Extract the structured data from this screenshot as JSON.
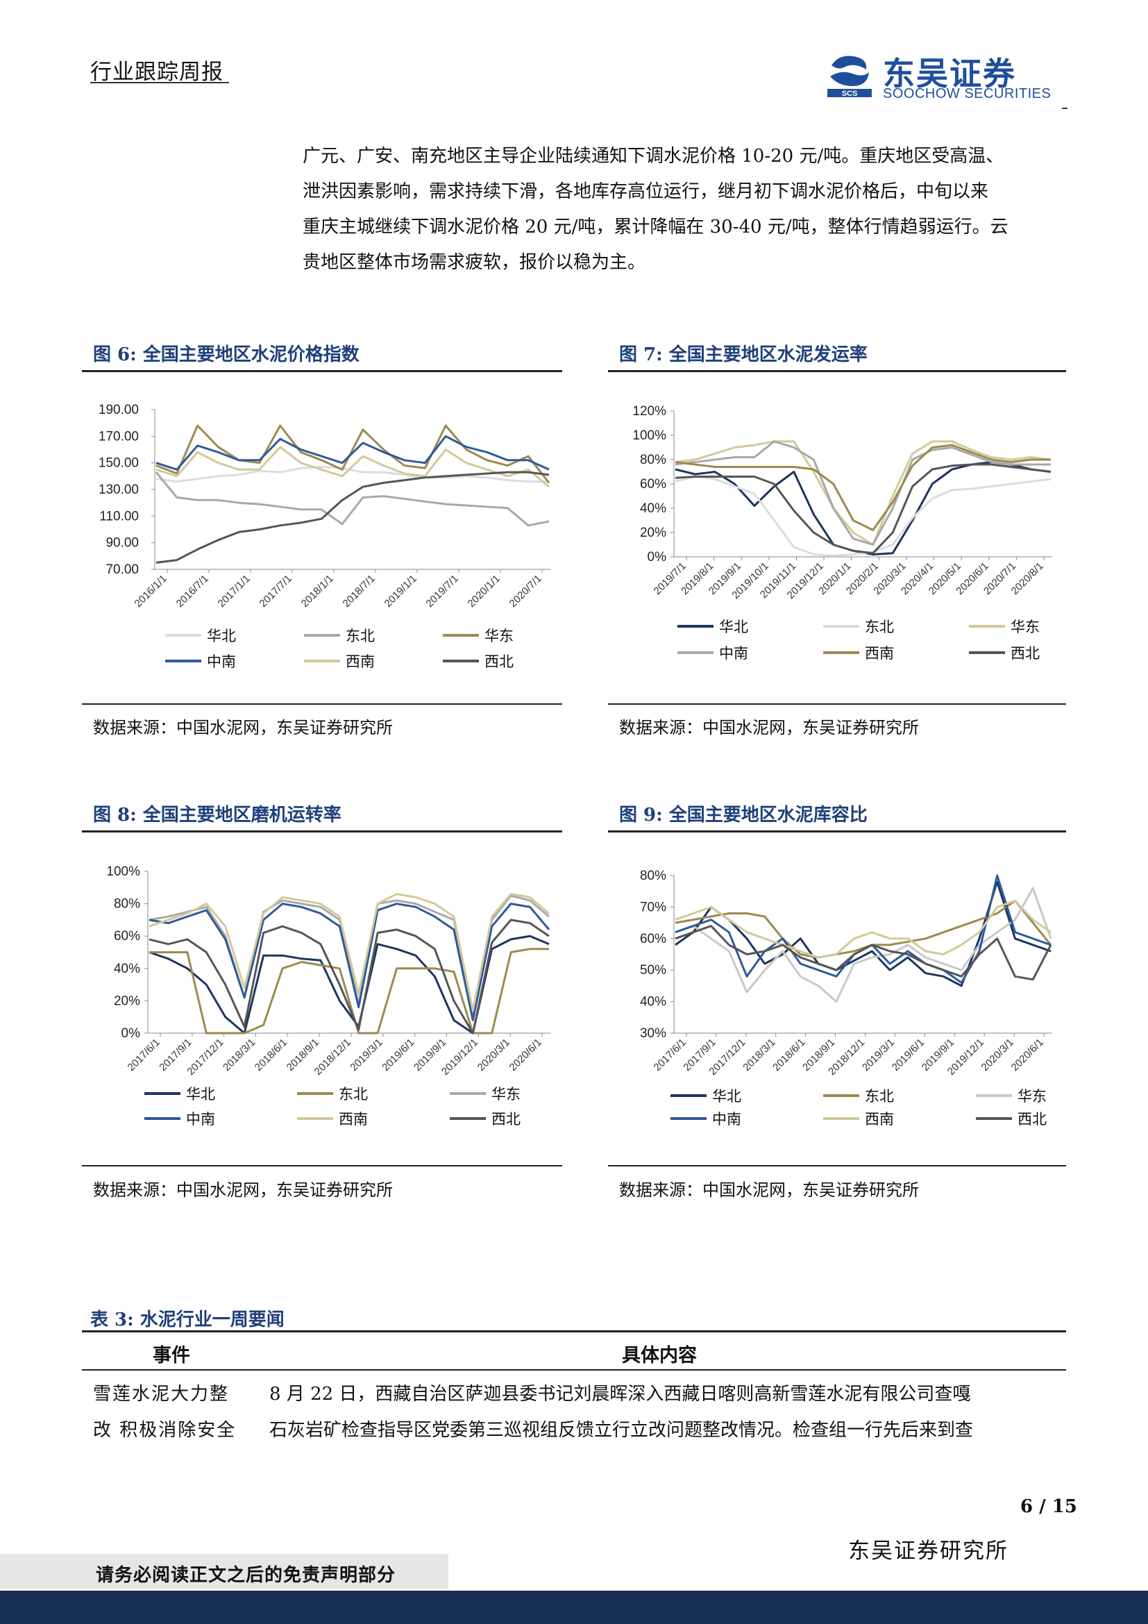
{
  "header": {
    "title": "行业跟踪周报"
  },
  "logo": {
    "cn": "东吴证券",
    "en": "SOOCHOW SECURITIES",
    "mark": "SCS"
  },
  "body": {
    "lines": [
      "广元、广安、南充地区主导企业陆续通知下调水泥价格 10-20 元/吨。重庆地区受高温、",
      "泄洪因素影响，需求持续下滑，各地库存高位运行，继月初下调水泥价格后，中旬以来",
      "重庆主城继续下调水泥价格 20 元/吨，累计降幅在 30-40 元/吨，整体行情趋弱运行。云",
      "贵地区整体市场需求疲软，报价以稳为主。"
    ]
  },
  "figures": [
    {
      "title": "图 6:  全国主要地区水泥价格指数",
      "source": "数据来源：中国水泥网，东吴证券研究所"
    },
    {
      "title": "图 7:  全国主要地区水泥发运率",
      "source": "数据来源：中国水泥网，东吴证券研究所"
    },
    {
      "title": "图 8:  全国主要地区磨机运转率",
      "source": "数据来源：中国水泥网，东吴证券研究所"
    },
    {
      "title": "图 9:  全国主要地区水泥库容比",
      "source": "数据来源：中国水泥网，东吴证券研究所"
    }
  ],
  "colors": {
    "华北": "#dcdcdc",
    "东北": "#a8a8a8",
    "华东": "#9c8a4f",
    "中南": "#2e5b9a",
    "西南": "#d2c99a",
    "西北": "#555555"
  },
  "chart_data": [
    {
      "type": "line",
      "title": "全国主要地区水泥价格指数",
      "ylim": [
        70,
        190
      ],
      "yticks": [
        "190.00",
        "170.00",
        "150.00",
        "130.00",
        "110.00",
        "90.00",
        "70.00"
      ],
      "xticks": [
        "2016/1/1",
        "2016/7/1",
        "2017/1/1",
        "2017/7/1",
        "2018/1/1",
        "2018/7/1",
        "2019/1/1",
        "2019/7/1",
        "2020/1/1",
        "2020/7/1"
      ],
      "series": [
        {
          "name": "华北",
          "color": "#dcdcdc",
          "values": [
            138,
            136,
            138,
            140,
            141,
            144,
            143,
            146,
            147,
            146,
            143,
            143,
            141,
            139,
            139,
            140,
            139,
            137,
            136,
            136
          ]
        },
        {
          "name": "东北",
          "color": "#a8a8a8",
          "values": [
            143,
            124,
            122,
            122,
            120,
            119,
            117,
            115,
            115,
            104,
            124,
            125,
            123,
            121,
            119,
            118,
            117,
            116,
            103,
            106
          ]
        },
        {
          "name": "华东",
          "color": "#9c8a4f",
          "values": [
            148,
            142,
            178,
            162,
            152,
            150,
            178,
            158,
            152,
            145,
            175,
            160,
            148,
            146,
            178,
            160,
            152,
            148,
            155,
            135
          ]
        },
        {
          "name": "中南",
          "color": "#2e5b9a",
          "values": [
            150,
            145,
            163,
            158,
            152,
            152,
            168,
            160,
            155,
            150,
            165,
            158,
            152,
            150,
            170,
            162,
            158,
            152,
            152,
            145
          ]
        },
        {
          "name": "西南",
          "color": "#d2c99a",
          "values": [
            145,
            140,
            158,
            150,
            145,
            145,
            162,
            150,
            145,
            140,
            155,
            148,
            142,
            140,
            160,
            150,
            145,
            140,
            145,
            132
          ]
        },
        {
          "name": "西北",
          "color": "#555555",
          "values": [
            75,
            77,
            85,
            92,
            98,
            100,
            103,
            105,
            108,
            122,
            132,
            135,
            137,
            139,
            140,
            141,
            142,
            143,
            143,
            141
          ]
        }
      ]
    },
    {
      "type": "line",
      "title": "全国主要地区水泥发运率",
      "ylim": [
        0,
        120
      ],
      "yticks": [
        "120%",
        "100%",
        "80%",
        "60%",
        "40%",
        "20%",
        "0%"
      ],
      "xticks": [
        "2019/7/1",
        "2019/8/1",
        "2019/9/1",
        "2019/10/1",
        "2019/11/1",
        "2019/12/1",
        "2020/1/1",
        "2020/2/1",
        "2020/3/1",
        "2020/4/1",
        "2020/5/1",
        "2020/6/1",
        "2020/7/1",
        "2020/8/1"
      ],
      "series": [
        {
          "name": "华北",
          "color": "#1c3560",
          "values": [
            72,
            68,
            70,
            60,
            42,
            58,
            70,
            35,
            10,
            5,
            2,
            3,
            30,
            60,
            72,
            76,
            78,
            76,
            72,
            70
          ]
        },
        {
          "name": "东北",
          "color": "#dcdcdc",
          "values": [
            62,
            66,
            64,
            58,
            52,
            30,
            8,
            2,
            1,
            2,
            4,
            10,
            32,
            48,
            55,
            56,
            58,
            60,
            62,
            64
          ]
        },
        {
          "name": "华东",
          "color": "#d2c99a",
          "values": [
            78,
            80,
            85,
            90,
            92,
            95,
            95,
            70,
            40,
            20,
            10,
            50,
            85,
            95,
            95,
            88,
            82,
            80,
            82,
            80
          ]
        },
        {
          "name": "中南",
          "color": "#a8a8a8",
          "values": [
            76,
            78,
            80,
            82,
            82,
            95,
            90,
            80,
            40,
            15,
            10,
            40,
            80,
            88,
            90,
            84,
            78,
            76,
            76,
            76
          ]
        },
        {
          "name": "西南",
          "color": "#9c8a4f",
          "values": [
            78,
            76,
            74,
            74,
            74,
            74,
            74,
            72,
            60,
            30,
            22,
            45,
            75,
            90,
            92,
            86,
            80,
            78,
            80,
            80
          ]
        },
        {
          "name": "西北",
          "color": "#555555",
          "values": [
            65,
            66,
            66,
            66,
            66,
            60,
            38,
            20,
            10,
            5,
            3,
            20,
            58,
            72,
            75,
            76,
            76,
            74,
            72,
            70
          ]
        }
      ]
    },
    {
      "type": "line",
      "title": "全国主要地区磨机运转率",
      "ylim": [
        0,
        100
      ],
      "yticks": [
        "100%",
        "80%",
        "60%",
        "40%",
        "20%",
        "0%"
      ],
      "xticks": [
        "2017/6/1",
        "2017/9/1",
        "2017/12/1",
        "2018/3/1",
        "2018/6/1",
        "2018/9/1",
        "2018/12/1",
        "2019/3/1",
        "2019/6/1",
        "2019/9/1",
        "2019/12/1",
        "2020/3/1",
        "2020/6/1"
      ],
      "series": [
        {
          "name": "华北",
          "color": "#1c3560",
          "values": [
            50,
            46,
            40,
            30,
            10,
            0,
            48,
            48,
            46,
            45,
            20,
            4,
            55,
            52,
            48,
            35,
            8,
            0,
            52,
            58,
            60,
            55
          ]
        },
        {
          "name": "东北",
          "color": "#9c8a4f",
          "values": [
            50,
            50,
            50,
            0,
            0,
            0,
            5,
            40,
            44,
            42,
            40,
            0,
            0,
            40,
            40,
            40,
            38,
            0,
            0,
            50,
            52,
            52
          ]
        },
        {
          "name": "华东",
          "color": "#a8a8a8",
          "values": [
            70,
            72,
            75,
            78,
            60,
            22,
            75,
            82,
            80,
            78,
            70,
            18,
            80,
            82,
            80,
            75,
            70,
            10,
            70,
            85,
            82,
            72
          ]
        },
        {
          "name": "中南",
          "color": "#2e5b9a",
          "values": [
            70,
            68,
            72,
            76,
            58,
            22,
            70,
            80,
            78,
            74,
            66,
            16,
            76,
            80,
            78,
            72,
            64,
            8,
            66,
            80,
            78,
            64
          ]
        },
        {
          "name": "西南",
          "color": "#d2c99a",
          "values": [
            66,
            70,
            74,
            80,
            66,
            28,
            74,
            84,
            82,
            80,
            72,
            24,
            80,
            86,
            84,
            80,
            72,
            14,
            72,
            86,
            84,
            74
          ]
        },
        {
          "name": "西北",
          "color": "#555555",
          "values": [
            58,
            55,
            58,
            50,
            30,
            4,
            62,
            66,
            62,
            55,
            30,
            2,
            62,
            64,
            60,
            52,
            20,
            0,
            56,
            70,
            68,
            60
          ]
        }
      ]
    },
    {
      "type": "line",
      "title": "全国主要地区水泥库容比",
      "ylim": [
        30,
        80
      ],
      "yticks": [
        "80%",
        "70%",
        "60%",
        "50%",
        "40%",
        "30%"
      ],
      "xticks": [
        "2017/6/1",
        "2017/9/1",
        "2017/12/1",
        "2018/3/1",
        "2018/6/1",
        "2018/9/1",
        "2018/12/1",
        "2019/3/1",
        "2019/6/1",
        "2019/9/1",
        "2019/12/1",
        "2020/3/1",
        "2020/6/1"
      ],
      "series": [
        {
          "name": "华北",
          "color": "#1c3560",
          "values": [
            58,
            62,
            70,
            66,
            60,
            52,
            55,
            60,
            52,
            50,
            53,
            56,
            50,
            54,
            49,
            48,
            45,
            60,
            78,
            60,
            58,
            56
          ]
        },
        {
          "name": "东北",
          "color": "#9c8a4f",
          "values": [
            65,
            66,
            67,
            68,
            68,
            67,
            60,
            55,
            54,
            55,
            56,
            58,
            58,
            59,
            60,
            62,
            64,
            66,
            68,
            72,
            65,
            58
          ]
        },
        {
          "name": "华东",
          "color": "#c8c8c8",
          "values": [
            62,
            64,
            60,
            56,
            43,
            50,
            56,
            48,
            45,
            40,
            52,
            54,
            55,
            58,
            54,
            52,
            50,
            58,
            62,
            66,
            76,
            60
          ]
        },
        {
          "name": "中南",
          "color": "#2e5b9a",
          "values": [
            62,
            64,
            66,
            62,
            48,
            56,
            60,
            52,
            50,
            48,
            55,
            58,
            52,
            56,
            52,
            50,
            46,
            56,
            80,
            62,
            60,
            58
          ]
        },
        {
          "name": "西南",
          "color": "#d2c99a",
          "values": [
            66,
            68,
            70,
            66,
            62,
            60,
            58,
            56,
            54,
            55,
            60,
            62,
            60,
            60,
            56,
            55,
            58,
            62,
            70,
            72,
            66,
            62
          ]
        },
        {
          "name": "西北",
          "color": "#555555",
          "values": [
            60,
            62,
            64,
            58,
            55,
            56,
            58,
            54,
            52,
            50,
            55,
            58,
            56,
            55,
            52,
            50,
            48,
            55,
            60,
            48,
            47,
            58
          ]
        }
      ]
    }
  ],
  "table": {
    "title": "表 3:  水泥行业一周要闻",
    "headers": [
      "事件",
      "具体内容"
    ],
    "rows": [
      {
        "event_lines": [
          "雪莲水泥大力整",
          "改  积极消除安全"
        ],
        "content_lines": [
          "8 月 22 日，西藏自治区萨迦县委书记刘晨晖深入西藏日喀则高新雪莲水泥有限公司查嘎",
          "石灰岩矿检查指导区党委第三巡视组反馈立行立改问题整改情况。检查组一行先后来到查"
        ]
      }
    ]
  },
  "footer": {
    "page": "6 / 15",
    "org": "东吴证券研究所",
    "note": "请务必阅读正文之后的免责声明部分"
  }
}
